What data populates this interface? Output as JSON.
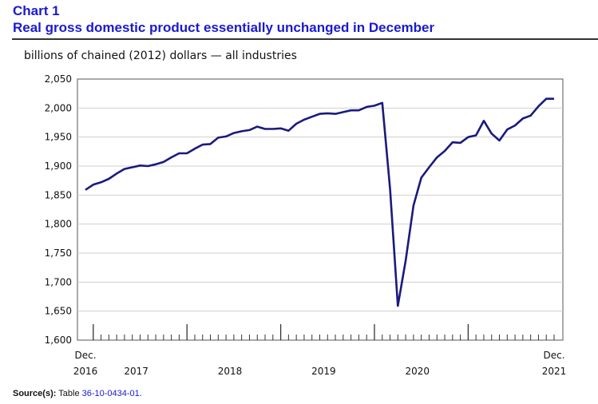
{
  "header": {
    "chart_label": "Chart 1",
    "title": "Real gross domestic product essentially unchanged in December"
  },
  "source": {
    "label": "Source(s):",
    "text": "Table",
    "link_text": "36-10-0434-01."
  },
  "colors": {
    "title": "#1a1ad0",
    "series": "#1a1a7e"
  },
  "chart_data": {
    "type": "line",
    "title": "Real gross domestic product essentially unchanged in December",
    "ylabel": "billions of chained (2012) dollars — all industries",
    "xlabel": "",
    "ylim": [
      1600,
      2050
    ],
    "yticks": [
      1600,
      1650,
      1700,
      1750,
      1800,
      1850,
      1900,
      1950,
      2000,
      2050
    ],
    "ytick_labels": [
      "1,600",
      "1,650",
      "1,700",
      "1,750",
      "1,800",
      "1,850",
      "1,900",
      "1,950",
      "2,000",
      "2,050"
    ],
    "x_start": "2016-12",
    "x_end": "2021-12",
    "x_labels": [
      {
        "index": 0,
        "top": "Dec.",
        "bottom": "2016"
      },
      {
        "index": 6.5,
        "top": "",
        "bottom": "2017"
      },
      {
        "index": 18.5,
        "top": "",
        "bottom": "2018"
      },
      {
        "index": 30.5,
        "top": "",
        "bottom": "2019"
      },
      {
        "index": 42.5,
        "top": "",
        "bottom": "2020"
      },
      {
        "index": 60,
        "top": "Dec.",
        "bottom": "2021"
      }
    ],
    "major_tick_indices": [
      1,
      13,
      25,
      37,
      49
    ],
    "series": [
      {
        "name": "Real GDP, all industries",
        "values": [
          1859,
          1868,
          1872,
          1878,
          1887,
          1895,
          1898,
          1901,
          1900,
          1903,
          1907,
          1915,
          1922,
          1922,
          1930,
          1937,
          1938,
          1949,
          1951,
          1957,
          1960,
          1962,
          1968,
          1964,
          1964,
          1965,
          1961,
          1973,
          1980,
          1985,
          1990,
          1991,
          1990,
          1993,
          1996,
          1996,
          2002,
          2004,
          2009,
          1860,
          1659,
          1737,
          1832,
          1880,
          1898,
          1915,
          1926,
          1941,
          1940,
          1950,
          1953,
          1978,
          1956,
          1944,
          1963,
          1970,
          1982,
          1987,
          2003,
          2016,
          2016
        ]
      }
    ]
  }
}
